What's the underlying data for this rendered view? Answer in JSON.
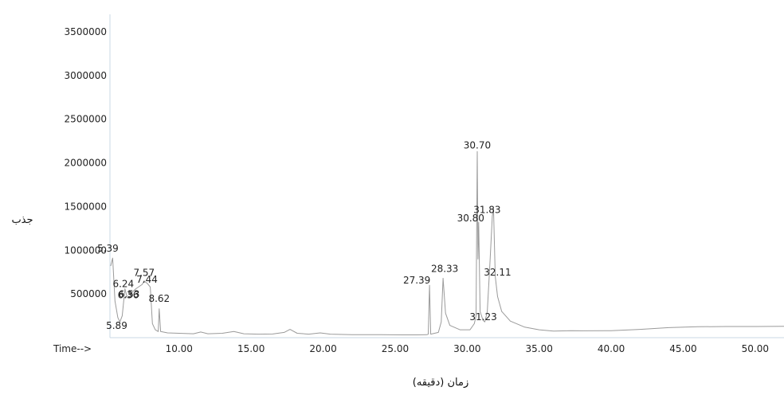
{
  "chart_data": {
    "type": "line",
    "title": "",
    "xlabel": "زمان (دقیقه)",
    "ylabel": "جذب",
    "x_axis_prefix": "Time-->",
    "xlim": [
      5.2,
      52
    ],
    "ylim": [
      0,
      3700000
    ],
    "xticks": [
      {
        "value": 10,
        "label": "10.00"
      },
      {
        "value": 15,
        "label": "15.00"
      },
      {
        "value": 20,
        "label": "20.00"
      },
      {
        "value": 25,
        "label": "25.00"
      },
      {
        "value": 30,
        "label": "30.00"
      },
      {
        "value": 35,
        "label": "35.00"
      },
      {
        "value": 40,
        "label": "40.00"
      },
      {
        "value": 45,
        "label": "45.00"
      },
      {
        "value": 50,
        "label": "50.00"
      }
    ],
    "yticks": [
      {
        "value": 500000,
        "label": "500000"
      },
      {
        "value": 1000000,
        "label": "1000000"
      },
      {
        "value": 1500000,
        "label": "1500000"
      },
      {
        "value": 2000000,
        "label": "2000000"
      },
      {
        "value": 2500000,
        "label": "2500000"
      },
      {
        "value": 3000000,
        "label": "3000000"
      },
      {
        "value": 3500000,
        "label": "3500000"
      }
    ],
    "grid": false,
    "line_color": "#9a9a9a",
    "axis_color": "#c9d8e4",
    "series": [
      {
        "values": [
          [
            5.25,
            820000
          ],
          [
            5.39,
            910000
          ],
          [
            5.55,
            420000
          ],
          [
            5.75,
            230000
          ],
          [
            5.89,
            180000
          ],
          [
            6.05,
            250000
          ],
          [
            6.24,
            560000
          ],
          [
            6.36,
            480000
          ],
          [
            6.53,
            460000
          ],
          [
            6.75,
            520000
          ],
          [
            7.0,
            560000
          ],
          [
            7.44,
            610000
          ],
          [
            7.57,
            650000
          ],
          [
            7.8,
            620000
          ],
          [
            8.0,
            580000
          ],
          [
            8.15,
            160000
          ],
          [
            8.35,
            90000
          ],
          [
            8.55,
            70000
          ],
          [
            8.62,
            330000
          ],
          [
            8.72,
            70000
          ],
          [
            9.2,
            55000
          ],
          [
            10.0,
            50000
          ],
          [
            11.0,
            45000
          ],
          [
            11.5,
            65000
          ],
          [
            12.0,
            45000
          ],
          [
            13.0,
            50000
          ],
          [
            13.8,
            70000
          ],
          [
            14.5,
            45000
          ],
          [
            15.5,
            40000
          ],
          [
            16.5,
            42000
          ],
          [
            17.3,
            60000
          ],
          [
            17.7,
            95000
          ],
          [
            18.2,
            50000
          ],
          [
            19.0,
            40000
          ],
          [
            19.8,
            55000
          ],
          [
            20.5,
            40000
          ],
          [
            22.0,
            35000
          ],
          [
            24.0,
            35000
          ],
          [
            25.5,
            32000
          ],
          [
            26.5,
            32000
          ],
          [
            27.2,
            34000
          ],
          [
            27.3,
            40000
          ],
          [
            27.39,
            600000
          ],
          [
            27.47,
            40000
          ],
          [
            28.0,
            60000
          ],
          [
            28.2,
            180000
          ],
          [
            28.33,
            680000
          ],
          [
            28.5,
            280000
          ],
          [
            28.8,
            140000
          ],
          [
            29.5,
            90000
          ],
          [
            30.2,
            90000
          ],
          [
            30.5,
            160000
          ],
          [
            30.62,
            250000
          ],
          [
            30.7,
            2130000
          ],
          [
            30.75,
            900000
          ],
          [
            30.8,
            1320000
          ],
          [
            30.9,
            300000
          ],
          [
            31.1,
            200000
          ],
          [
            31.23,
            180000
          ],
          [
            31.4,
            300000
          ],
          [
            31.6,
            900000
          ],
          [
            31.75,
            1390000
          ],
          [
            31.83,
            1480000
          ],
          [
            31.95,
            700000
          ],
          [
            32.11,
            470000
          ],
          [
            32.4,
            300000
          ],
          [
            33.0,
            190000
          ],
          [
            34.0,
            120000
          ],
          [
            35.0,
            90000
          ],
          [
            36.0,
            75000
          ],
          [
            37.2,
            80000
          ],
          [
            38.0,
            78000
          ],
          [
            40.0,
            80000
          ],
          [
            42.0,
            95000
          ],
          [
            44.0,
            115000
          ],
          [
            46.0,
            125000
          ],
          [
            48.0,
            128000
          ],
          [
            50.0,
            128000
          ],
          [
            52.0,
            130000
          ]
        ]
      }
    ],
    "peak_labels": [
      {
        "x": 5.39,
        "label": "5.39"
      },
      {
        "x": 5.89,
        "label": "5.89"
      },
      {
        "x": 6.24,
        "label": "6.24"
      },
      {
        "x": 6.36,
        "label": "6.36"
      },
      {
        "x": 6.53,
        "label": "6.53"
      },
      {
        "x": 7.44,
        "label": "7.44"
      },
      {
        "x": 7.57,
        "label": "7.57"
      },
      {
        "x": 8.62,
        "label": "8.62"
      },
      {
        "x": 27.39,
        "label": "27.39"
      },
      {
        "x": 28.33,
        "label": "28.33"
      },
      {
        "x": 30.7,
        "label": "30.70"
      },
      {
        "x": 30.8,
        "label": "30.80"
      },
      {
        "x": 31.23,
        "label": "31.23"
      },
      {
        "x": 31.83,
        "label": "31.83"
      },
      {
        "x": 32.11,
        "label": "32.11"
      }
    ]
  }
}
